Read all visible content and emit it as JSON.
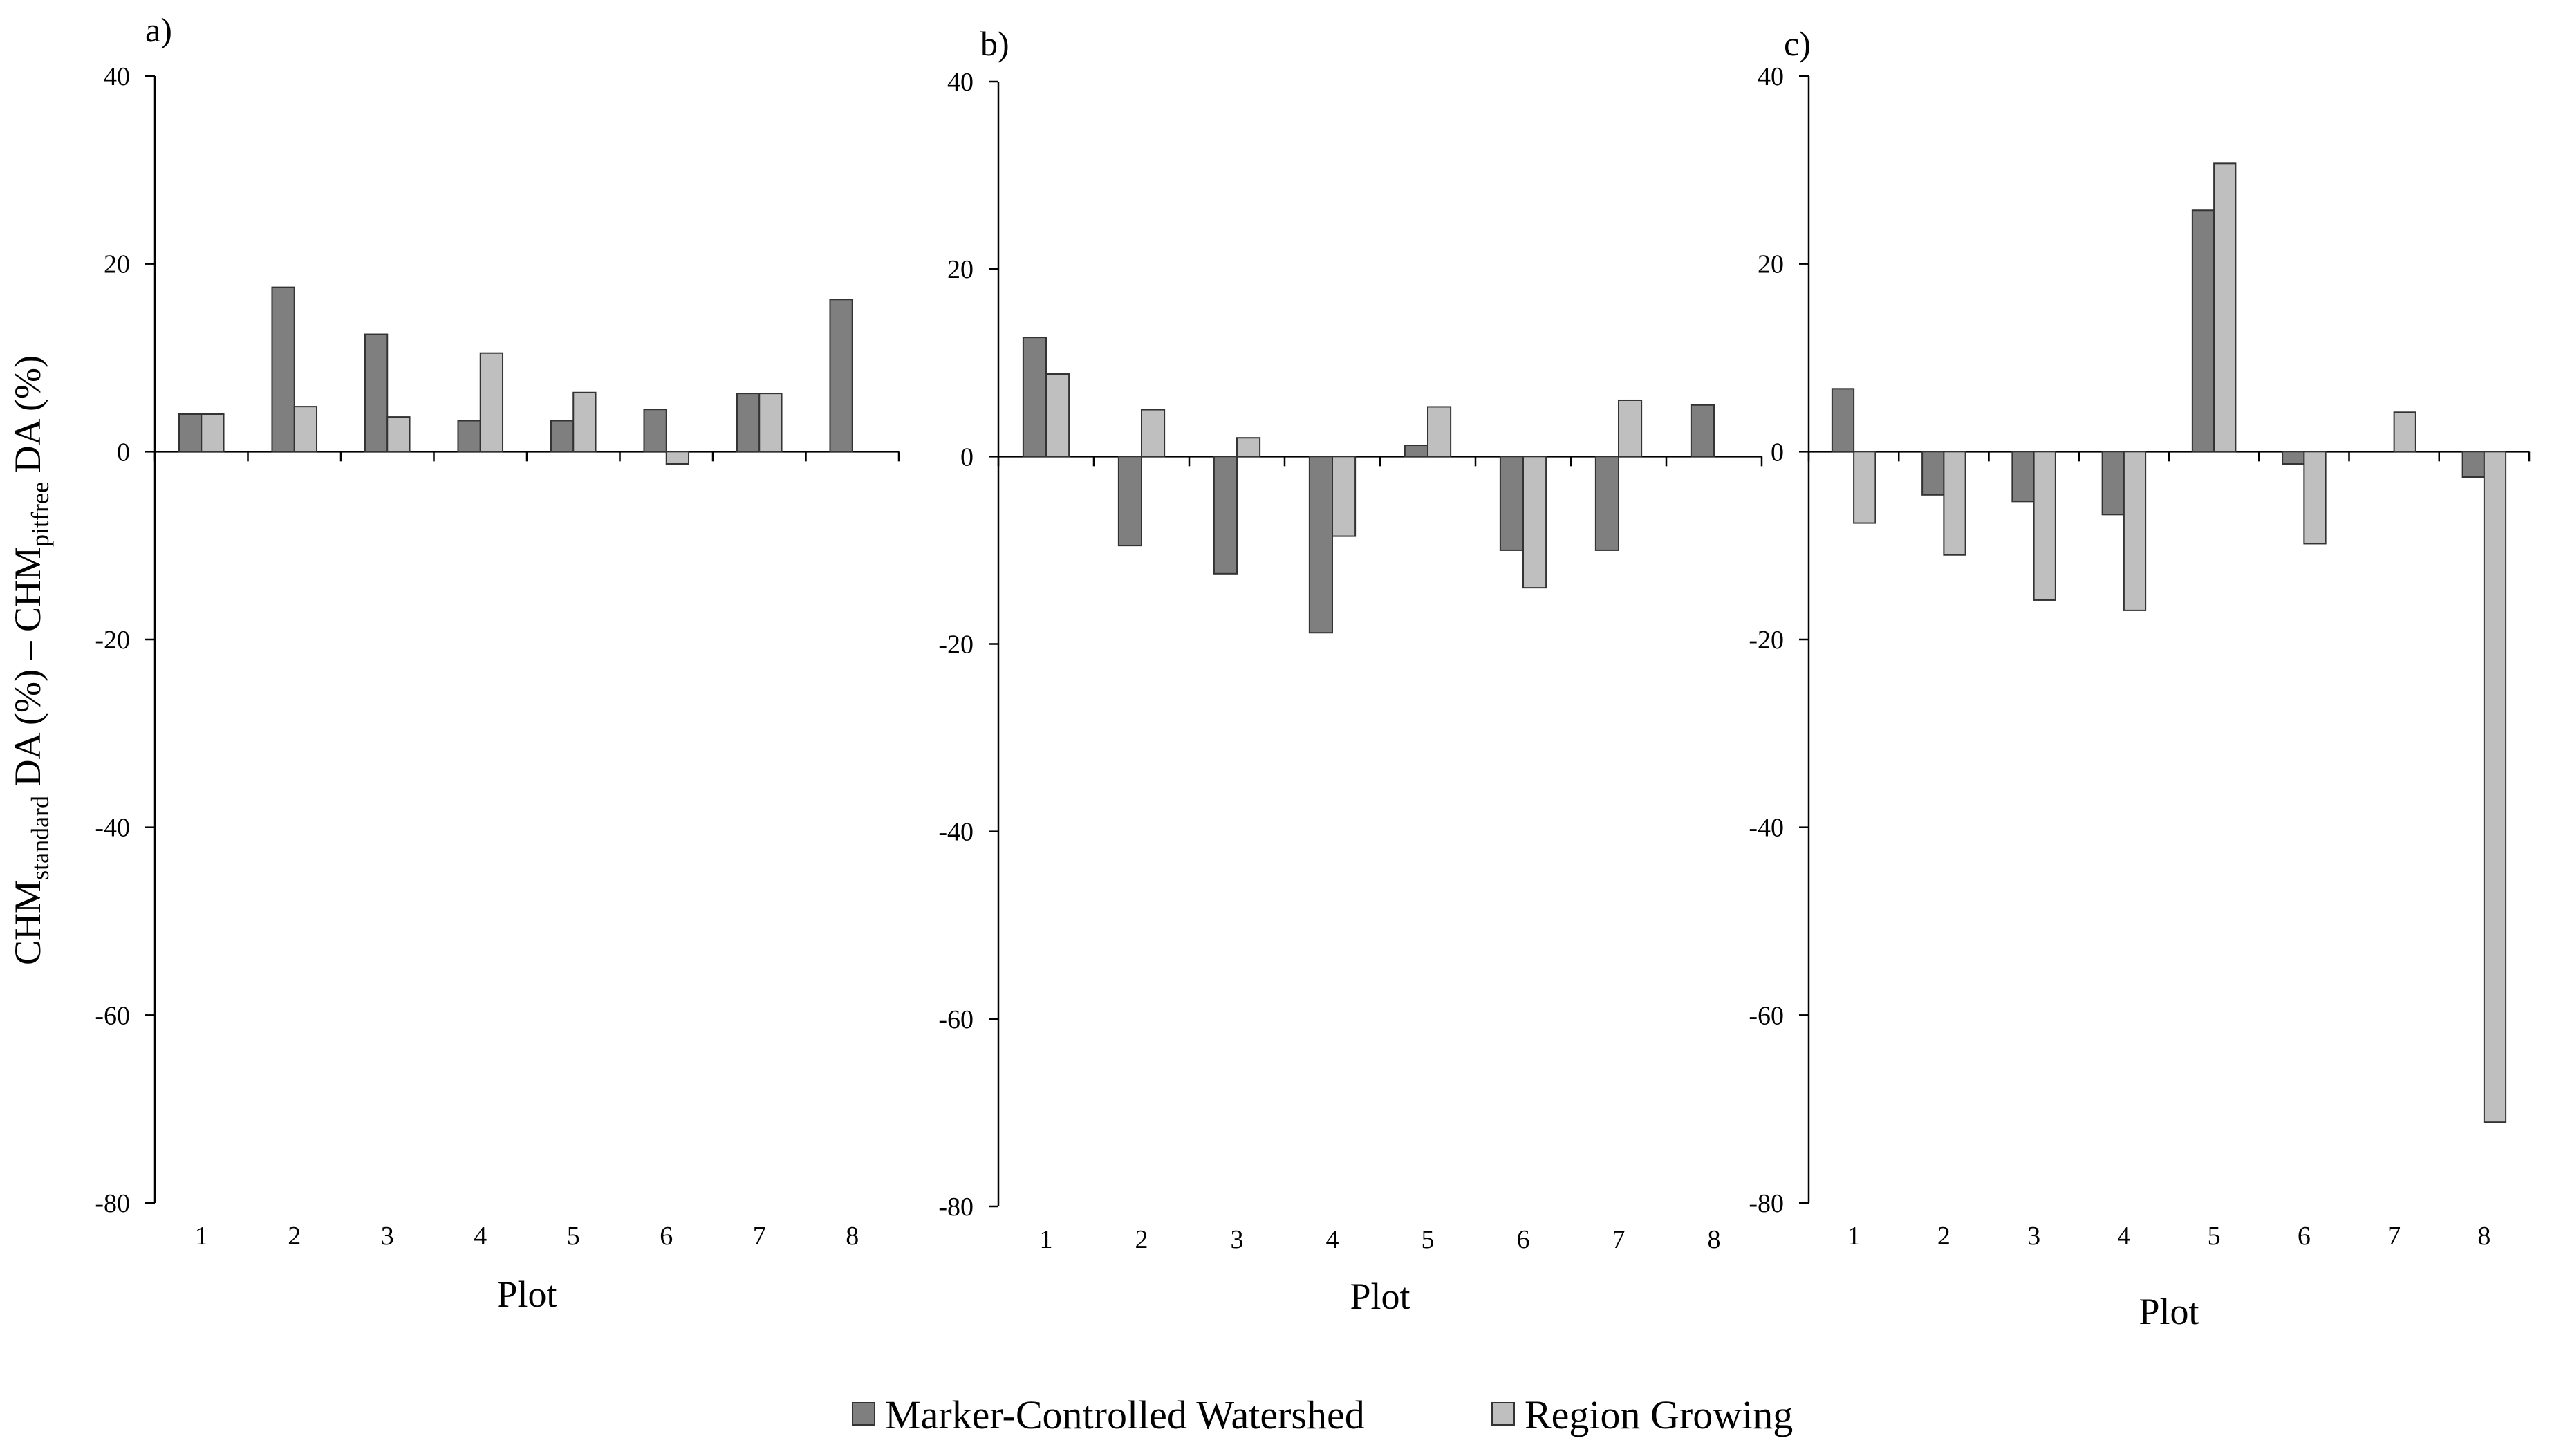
{
  "legend": {
    "position": "bottom-center",
    "items": [
      {
        "label": "Marker-Controlled Watershed",
        "color": "#7f7f7f"
      },
      {
        "label": "Region Growing",
        "color": "#bfbfbf"
      }
    ]
  },
  "y_axis_title": {
    "main": "CHM",
    "sub1": "standard",
    "mid": " DA (%) – CHM",
    "sub2": "pitfree",
    "end": " DA (%)"
  },
  "chart_data": [
    {
      "type": "bar",
      "panel_label": "a)",
      "xlabel": "Plot",
      "ylim": [
        -80,
        40
      ],
      "yticks": [
        -80,
        -60,
        -40,
        -20,
        0,
        20,
        40
      ],
      "categories": [
        "1",
        "2",
        "3",
        "4",
        "5",
        "6",
        "7",
        "8"
      ],
      "grid": false,
      "series": [
        {
          "name": "Marker-Controlled Watershed",
          "color": "#7f7f7f",
          "values": [
            4.0,
            17.5,
            12.5,
            3.3,
            3.3,
            4.5,
            6.2,
            16.2
          ]
        },
        {
          "name": "Region Growing",
          "color": "#bfbfbf",
          "values": [
            4.0,
            4.8,
            3.7,
            10.5,
            6.3,
            -1.3,
            6.2,
            0
          ]
        }
      ]
    },
    {
      "type": "bar",
      "panel_label": "b)",
      "xlabel": "Plot",
      "ylim": [
        -80,
        40
      ],
      "yticks": [
        -80,
        -60,
        -40,
        -20,
        0,
        20,
        40
      ],
      "categories": [
        "1",
        "2",
        "3",
        "4",
        "5",
        "6",
        "7",
        "8"
      ],
      "grid": false,
      "series": [
        {
          "name": "Marker-Controlled Watershed",
          "color": "#7f7f7f",
          "values": [
            12.7,
            -9.5,
            -12.5,
            -18.8,
            1.2,
            -10.0,
            -10.0,
            5.5
          ]
        },
        {
          "name": "Region Growing",
          "color": "#bfbfbf",
          "values": [
            8.8,
            5.0,
            2.0,
            -8.5,
            5.3,
            -14.0,
            6.0,
            0
          ]
        }
      ]
    },
    {
      "type": "bar",
      "panel_label": "c)",
      "xlabel": "Plot",
      "ylim": [
        -80,
        40
      ],
      "yticks": [
        -80,
        -60,
        -40,
        -20,
        0,
        20,
        40
      ],
      "categories": [
        "1",
        "2",
        "3",
        "4",
        "5",
        "6",
        "7",
        "8"
      ],
      "grid": false,
      "series": [
        {
          "name": "Marker-Controlled Watershed",
          "color": "#7f7f7f",
          "values": [
            6.7,
            -4.6,
            -5.3,
            -6.7,
            25.7,
            -1.3,
            0,
            -2.7
          ]
        },
        {
          "name": "Region Growing",
          "color": "#bfbfbf",
          "values": [
            -7.6,
            -11.0,
            -15.8,
            -16.9,
            30.7,
            -9.8,
            4.2,
            -71.4
          ]
        }
      ]
    }
  ]
}
